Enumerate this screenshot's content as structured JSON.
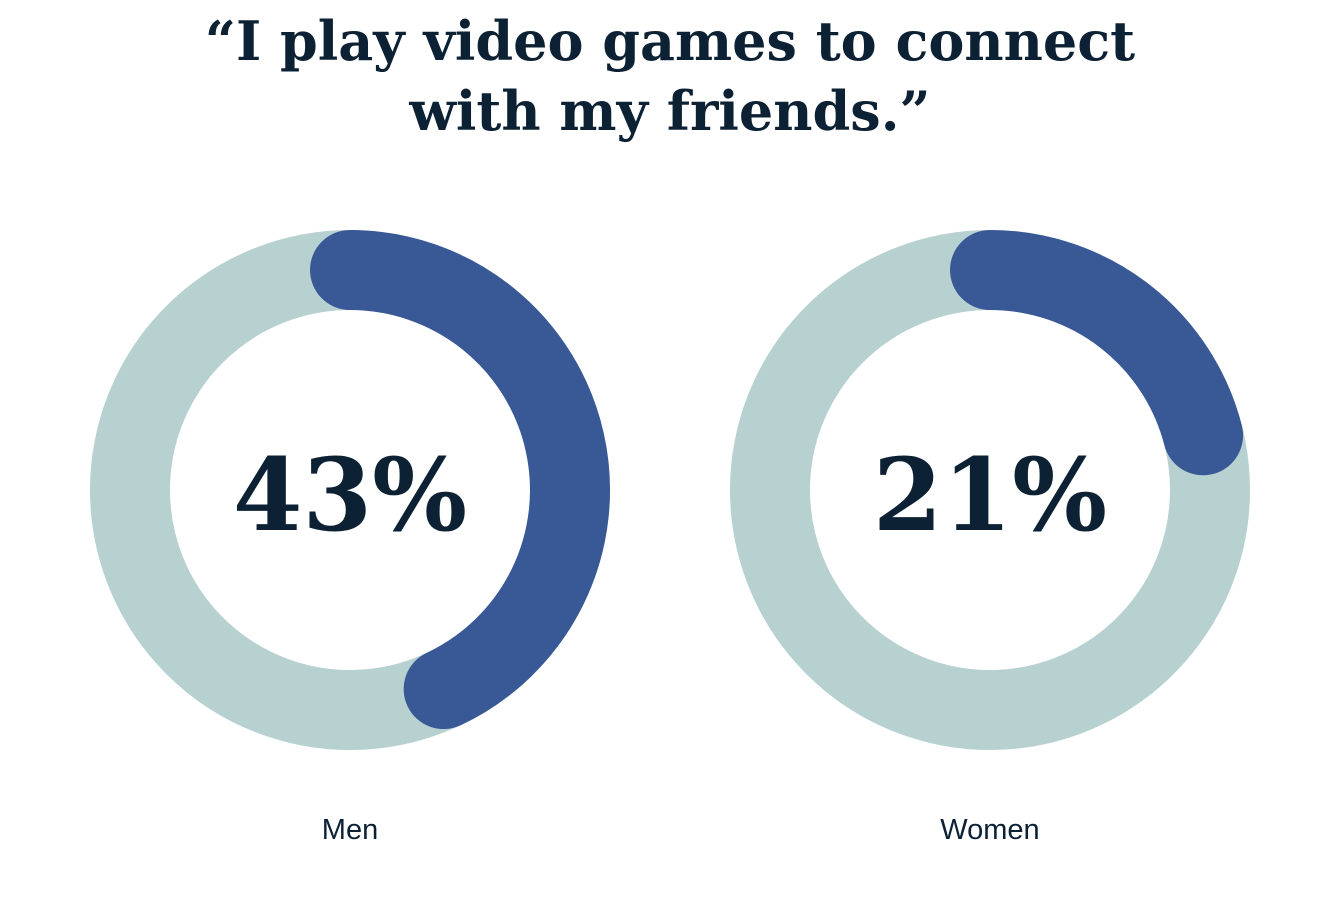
{
  "chart_data": {
    "type": "donut",
    "title_line1": "“I play video games to connect",
    "title_line2": "with my friends.”",
    "series": [
      {
        "category": "Men",
        "value": 43,
        "display": "43%"
      },
      {
        "category": "Women",
        "value": 21,
        "display": "21%"
      }
    ],
    "max": 100,
    "colors": {
      "filled": "#385896",
      "track": "#b7d1d1",
      "text": "#0c2133"
    }
  }
}
